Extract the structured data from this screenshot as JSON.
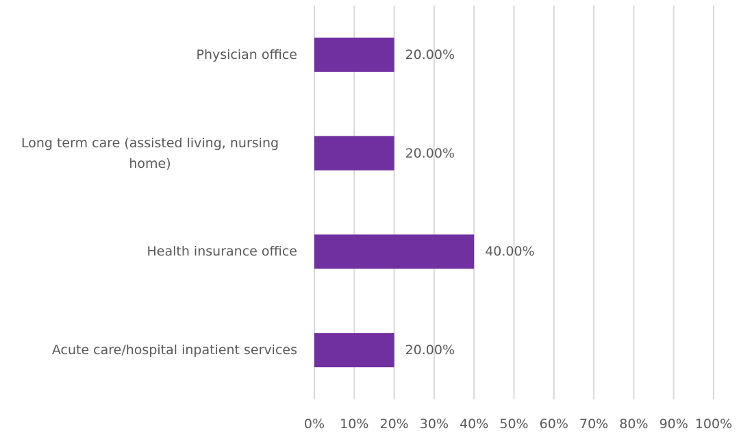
{
  "chart_data": {
    "type": "hbar",
    "categories": [
      "Physician office",
      "Long term care (assisted living, nursing home)",
      "Health insurance office",
      "Acute care/hospital inpatient services"
    ],
    "values": [
      20,
      20,
      40,
      20
    ],
    "value_labels": [
      "20.00%",
      "20.00%",
      "40.00%",
      "20.00%"
    ],
    "color": "#7030a0",
    "xlim": [
      0,
      100
    ],
    "xticks": [
      {
        "value": 0,
        "label": "0%"
      },
      {
        "value": 10,
        "label": "10%"
      },
      {
        "value": 20,
        "label": "20%"
      },
      {
        "value": 30,
        "label": "30%"
      },
      {
        "value": 40,
        "label": "40%"
      },
      {
        "value": 50,
        "label": "50%"
      },
      {
        "value": 60,
        "label": "60%"
      },
      {
        "value": 70,
        "label": "70%"
      },
      {
        "value": 80,
        "label": "80%"
      },
      {
        "value": 90,
        "label": "90%"
      },
      {
        "value": 100,
        "label": "100%"
      }
    ],
    "grid": true
  }
}
